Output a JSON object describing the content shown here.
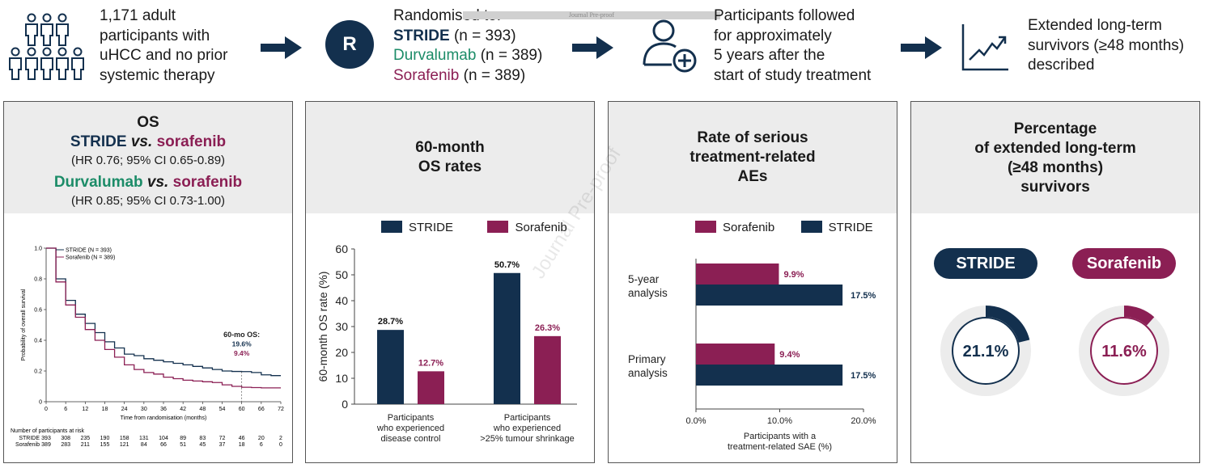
{
  "header": {
    "step1": {
      "line1": "1,171 adult",
      "line2": "participants with",
      "line3": "uHCC and no prior",
      "line4": "systemic therapy"
    },
    "randomisation_badge": "R",
    "step2": {
      "title": "Randomised to:",
      "stride_label": "STRIDE",
      "stride_n": " (n = 393)",
      "durva_label": "Durvalumab",
      "durva_n": " (n = 389)",
      "sora_label": "Sorafenib",
      "sora_n": " (n = 389)"
    },
    "step3": {
      "line1": "Participants followed",
      "line2": "for approximately",
      "line3": "5 years after the",
      "line4": "start of study treatment"
    },
    "step4": {
      "line1": "Extended long-term",
      "line2": "survivors (≥48 months)",
      "line3": "described"
    },
    "banner": "Journal Pre-proof"
  },
  "watermark": "Journal Pre-proof",
  "colors": {
    "navy": "#13304e",
    "green": "#1c8c68",
    "plum": "#8b1f54",
    "grey": "#ececec"
  },
  "panel_os": {
    "title": "OS",
    "cmp1_a": "STRIDE",
    "cmp1_vs": " vs. ",
    "cmp1_b": "sorafenib",
    "cmp1_stats": "(HR 0.76; 95% CI 0.65-0.89)",
    "cmp2_a": "Durvalumab",
    "cmp2_vs": " vs. ",
    "cmp2_b": "sorafenib",
    "cmp2_stats": "(HR 0.85; 95% CI 0.73-1.00)",
    "km": {
      "legend_stride": "STRIDE (N = 393)",
      "legend_sora": "Sorafenib (N = 389)",
      "ylabel": "Probability of overall survival",
      "xlabel": "Time from randomisation (months)",
      "yticks": [
        "0",
        "0.2",
        "0.4",
        "0.6",
        "0.8",
        "1.0"
      ],
      "xticks": [
        "0",
        "6",
        "12",
        "18",
        "24",
        "30",
        "36",
        "42",
        "48",
        "54",
        "60",
        "66",
        "72"
      ],
      "annot_title": "60-mo OS:",
      "annot_stride": "19.6%",
      "annot_sora": "9.4%",
      "risk_title": "Number of participants at risk",
      "risk_rows": [
        {
          "label": "STRIDE",
          "values": [
            "393",
            "308",
            "235",
            "190",
            "158",
            "131",
            "104",
            "89",
            "83",
            "72",
            "46",
            "20",
            "2"
          ]
        },
        {
          "label": "Sorafenib",
          "values": [
            "389",
            "283",
            "211",
            "155",
            "121",
            "84",
            "66",
            "51",
            "45",
            "37",
            "18",
            "6",
            "0"
          ]
        }
      ]
    }
  },
  "panel_os60": {
    "title_line1": "60-month",
    "title_line2": "OS rates",
    "legend_stride": "STRIDE",
    "legend_sora": "Sorafenib",
    "ylabel": "60-month OS rate (%)",
    "yticks": [
      "0",
      "10",
      "20",
      "30",
      "40",
      "50",
      "60"
    ],
    "group1_line1": "Participants",
    "group1_line2": "who experienced",
    "group1_line3": "disease control",
    "group2_line1": "Participants",
    "group2_line2": "who experienced",
    "group2_line3": ">25% tumour shrinkage",
    "label_g1_stride": "28.7%",
    "label_g1_sora": "12.7%",
    "label_g2_stride": "50.7%",
    "label_g2_sora": "26.3%"
  },
  "panel_sae": {
    "title_line1": "Rate of serious",
    "title_line2": "treatment-related",
    "title_line3": "AEs",
    "legend_sora": "Sorafenib",
    "legend_stride": "STRIDE",
    "cat1_line1": "5-year",
    "cat1_line2": "analysis",
    "cat2_line1": "Primary",
    "cat2_line2": "analysis",
    "xticks": [
      "0.0%",
      "10.0%",
      "20.0%"
    ],
    "xlabel_line1": "Participants with a",
    "xlabel_line2": "treatment-related SAE (%)",
    "label_c1_sora": "9.9%",
    "label_c1_stride": "17.5%",
    "label_c2_sora": "9.4%",
    "label_c2_stride": "17.5%"
  },
  "panel_lts": {
    "title_line1": "Percentage",
    "title_line2": "of extended long-term",
    "title_line3": "(≥48 months)",
    "title_line4": "survivors",
    "pill_stride": "STRIDE",
    "pill_sora": "Sorafenib",
    "donut_stride_label": "21.1%",
    "donut_sora_label": "11.6%"
  },
  "chart_data": [
    {
      "type": "line",
      "title": "OS: STRIDE vs sorafenib (Kaplan-Meier)",
      "xlabel": "Time from randomisation (months)",
      "ylabel": "Probability of overall survival",
      "xlim": [
        0,
        72
      ],
      "ylim": [
        0,
        1.0
      ],
      "series": [
        {
          "name": "STRIDE (N = 393)",
          "x": [
            0,
            3,
            6,
            9,
            12,
            15,
            18,
            21,
            24,
            27,
            30,
            33,
            36,
            39,
            42,
            45,
            48,
            51,
            54,
            57,
            60,
            63,
            66,
            69,
            72
          ],
          "y": [
            1.0,
            0.8,
            0.66,
            0.57,
            0.51,
            0.45,
            0.39,
            0.35,
            0.31,
            0.3,
            0.28,
            0.27,
            0.26,
            0.25,
            0.24,
            0.23,
            0.22,
            0.21,
            0.2,
            0.197,
            0.196,
            0.19,
            0.175,
            0.17,
            0.17
          ]
        },
        {
          "name": "Sorafenib (N = 389)",
          "x": [
            0,
            3,
            6,
            9,
            12,
            15,
            18,
            21,
            24,
            27,
            30,
            33,
            36,
            39,
            42,
            45,
            48,
            51,
            54,
            57,
            60,
            63,
            66,
            69,
            72
          ],
          "y": [
            1.0,
            0.78,
            0.63,
            0.55,
            0.47,
            0.4,
            0.34,
            0.29,
            0.24,
            0.21,
            0.19,
            0.18,
            0.16,
            0.15,
            0.14,
            0.135,
            0.13,
            0.125,
            0.11,
            0.1,
            0.094,
            0.092,
            0.09,
            0.09,
            0.09
          ]
        }
      ]
    },
    {
      "type": "bar",
      "title": "60-month OS rates",
      "ylabel": "60-month OS rate (%)",
      "ylim": [
        0,
        60
      ],
      "categories": [
        "Participants who experienced disease control",
        "Participants who experienced >25% tumour shrinkage"
      ],
      "series": [
        {
          "name": "STRIDE",
          "values": [
            28.7,
            50.7
          ]
        },
        {
          "name": "Sorafenib",
          "values": [
            12.7,
            26.3
          ]
        }
      ]
    },
    {
      "type": "bar",
      "title": "Rate of serious treatment-related AEs",
      "xlabel": "Participants with a treatment-related SAE (%)",
      "xlim": [
        0,
        20
      ],
      "categories": [
        "5-year analysis",
        "Primary analysis"
      ],
      "series": [
        {
          "name": "Sorafenib",
          "values": [
            9.9,
            9.4
          ]
        },
        {
          "name": "STRIDE",
          "values": [
            17.5,
            17.5
          ]
        }
      ]
    },
    {
      "type": "pie",
      "title": "Percentage of extended long-term (≥48 months) survivors",
      "categories": [
        "STRIDE",
        "Sorafenib"
      ],
      "values": [
        21.1,
        11.6
      ]
    }
  ]
}
